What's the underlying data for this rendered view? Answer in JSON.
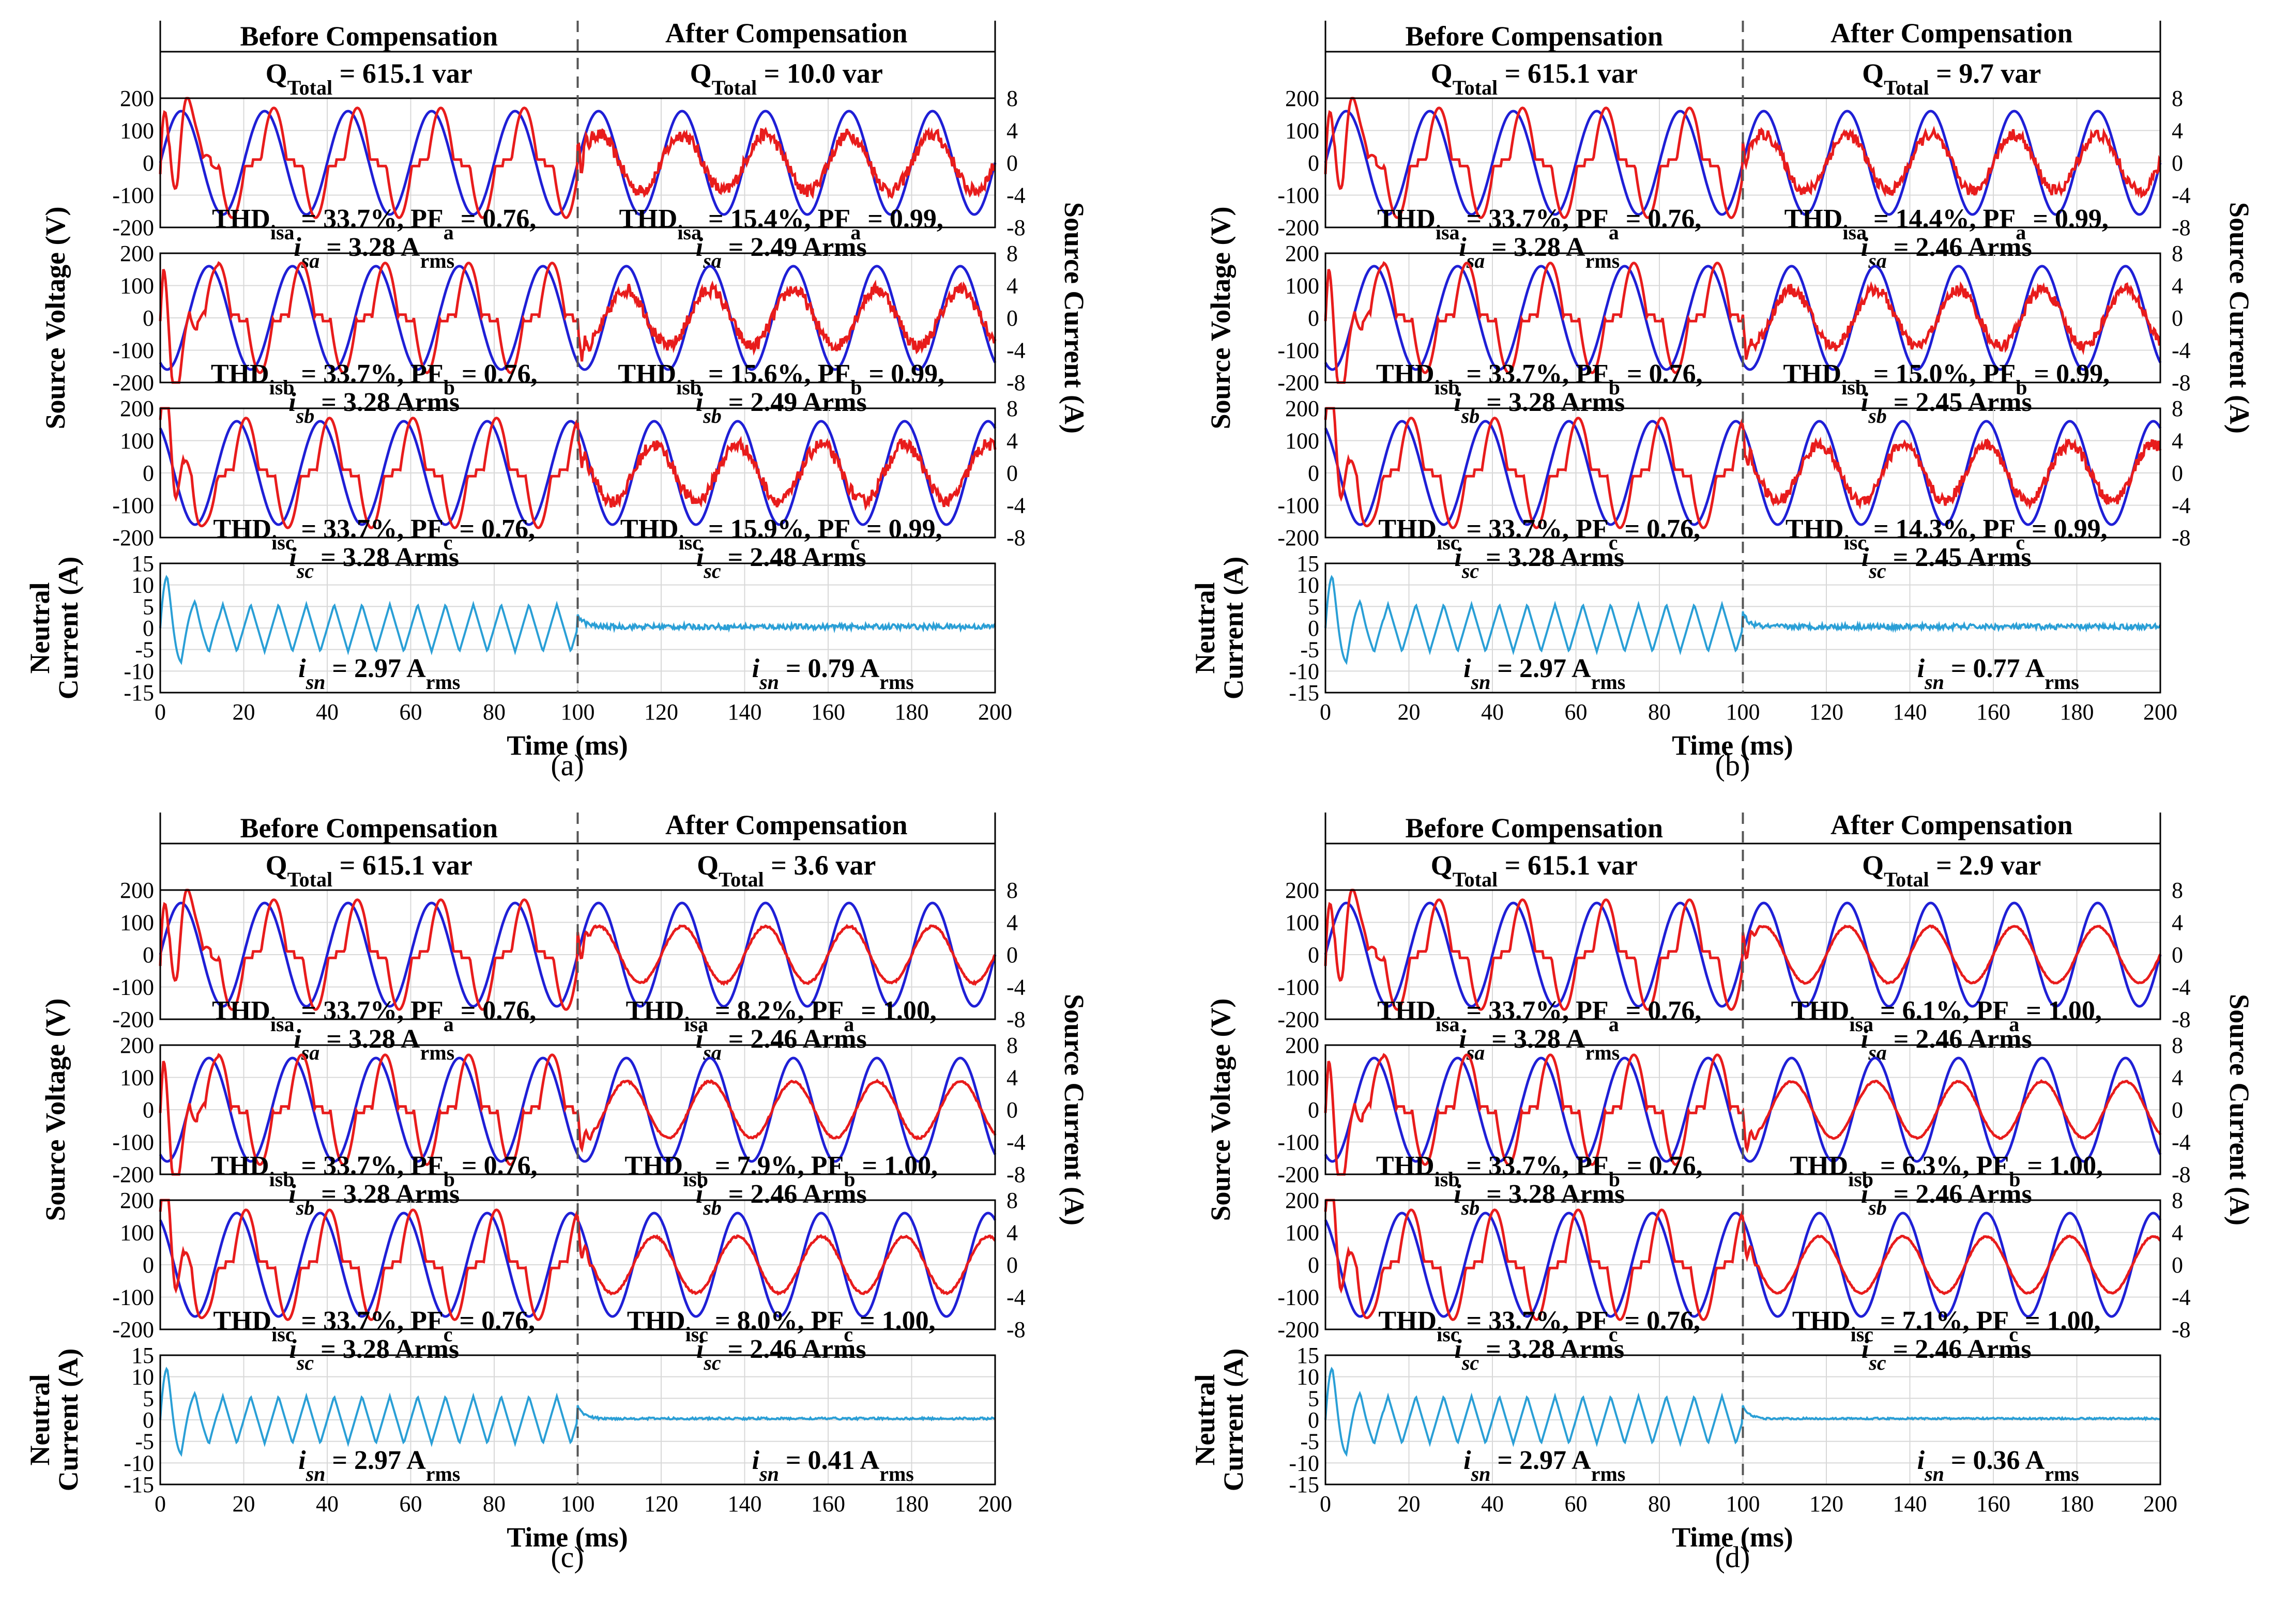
{
  "chart_data": [
    {
      "type": "line",
      "label": "(a)",
      "header": {
        "before": "Before Compensation",
        "after": "After Compensation",
        "q_before": "615.1 var",
        "q_after": "10.0 var"
      },
      "phases": [
        {
          "phase": "a",
          "thd_before": "33.7%",
          "pf_before": "0.76",
          "irms_before": "3.28",
          "thd_after": "15.4%",
          "pf_after": "0.99",
          "irms_after": "2.49",
          "unit_after": "Arms",
          "amp_after": 3.5,
          "ripple_after": 0.8
        },
        {
          "phase": "b",
          "thd_before": "33.7%",
          "pf_before": "0.76",
          "irms_before": "3.28",
          "thd_after": "15.6%",
          "pf_after": "0.99",
          "irms_after": "2.49",
          "unit_after": "Arms",
          "amp_after": 3.5,
          "ripple_after": 0.8
        },
        {
          "phase": "c",
          "thd_before": "33.7%",
          "pf_before": "0.76",
          "irms_before": "3.28",
          "thd_after": "15.9%",
          "pf_after": "0.99",
          "irms_after": "2.48",
          "unit_after": "Arms",
          "amp_after": 3.5,
          "ripple_after": 0.8
        }
      ],
      "neutral": {
        "irms_before": "2.97",
        "irms_after": "0.79",
        "ripple_after": 0.6
      }
    },
    {
      "type": "line",
      "label": "(b)",
      "header": {
        "before": "Before Compensation",
        "after": "After Compensation",
        "q_before": "615.1 var",
        "q_after": "9.7 var"
      },
      "phases": [
        {
          "phase": "a",
          "thd_before": "33.7%",
          "pf_before": "0.76",
          "irms_before": "3.28",
          "thd_after": "14.4%",
          "pf_after": "0.99",
          "irms_after": "2.46",
          "unit_after": "Arms",
          "amp_after": 3.5,
          "ripple_after": 0.7
        },
        {
          "phase": "b",
          "thd_before": "33.7%",
          "pf_before": "0.76",
          "irms_before": "3.28",
          "thd_after": "15.0%",
          "pf_after": "0.99",
          "irms_after": "2.45",
          "unit_after": "Arms",
          "amp_after": 3.5,
          "ripple_after": 0.7
        },
        {
          "phase": "c",
          "thd_before": "33.7%",
          "pf_before": "0.76",
          "irms_before": "3.28",
          "thd_after": "14.3%",
          "pf_after": "0.99",
          "irms_after": "2.45",
          "unit_after": "Arms",
          "amp_after": 3.5,
          "ripple_after": 0.7
        }
      ],
      "neutral": {
        "irms_before": "2.97",
        "irms_after": "0.77",
        "ripple_after": 0.6
      }
    },
    {
      "type": "line",
      "label": "(c)",
      "header": {
        "before": "Before Compensation",
        "after": "After Compensation",
        "q_before": "615.1 var",
        "q_after": "3.6 var"
      },
      "phases": [
        {
          "phase": "a",
          "thd_before": "33.7%",
          "pf_before": "0.76",
          "irms_before": "3.28",
          "thd_after": "8.2%",
          "pf_after": "1.00",
          "irms_after": "2.46",
          "unit_after": "Arms",
          "amp_after": 3.5,
          "ripple_after": 0.12
        },
        {
          "phase": "b",
          "thd_before": "33.7%",
          "pf_before": "0.76",
          "irms_before": "3.28",
          "thd_after": "7.9%",
          "pf_after": "1.00",
          "irms_after": "2.46",
          "unit_after": "Arms",
          "amp_after": 3.5,
          "ripple_after": 0.12
        },
        {
          "phase": "c",
          "thd_before": "33.7%",
          "pf_before": "0.76",
          "irms_before": "3.28",
          "thd_after": "8.0%",
          "pf_after": "1.00",
          "irms_after": "2.46",
          "unit_after": "Arms",
          "amp_after": 3.5,
          "ripple_after": 0.12
        }
      ],
      "neutral": {
        "irms_before": "2.97",
        "irms_after": "0.41",
        "ripple_after": 0.25
      }
    },
    {
      "type": "line",
      "label": "(d)",
      "header": {
        "before": "Before Compensation",
        "after": "After Compensation",
        "q_before": "615.1 var",
        "q_after": "2.9 var"
      },
      "phases": [
        {
          "phase": "a",
          "thd_before": "33.7%",
          "pf_before": "0.76",
          "irms_before": "3.28",
          "thd_after": "6.1%",
          "pf_after": "1.00",
          "irms_after": "2.46",
          "unit_after": "Arms",
          "amp_after": 3.5,
          "ripple_after": 0.08
        },
        {
          "phase": "b",
          "thd_before": "33.7%",
          "pf_before": "0.76",
          "irms_before": "3.28",
          "thd_after": "6.3%",
          "pf_after": "1.00",
          "irms_after": "2.46",
          "unit_after": "Arms",
          "amp_after": 3.5,
          "ripple_after": 0.08
        },
        {
          "phase": "c",
          "thd_before": "33.7%",
          "pf_before": "0.76",
          "irms_before": "3.28",
          "thd_after": "7.1%",
          "pf_after": "1.00",
          "irms_after": "2.46",
          "unit_after": "Arms",
          "amp_after": 3.5,
          "ripple_after": 0.08
        }
      ],
      "neutral": {
        "irms_before": "2.97",
        "irms_after": "0.36",
        "ripple_after": 0.2
      }
    }
  ],
  "common": {
    "x_label": "Time (ms)",
    "x_range": [
      0,
      200
    ],
    "x_ticks": [
      0,
      20,
      40,
      60,
      80,
      100,
      120,
      140,
      160,
      180,
      200
    ],
    "left_y_label": "Source Voltage (V)",
    "right_y_label": "Source Current (A)",
    "neutral_y_label_line1": "Neutral",
    "neutral_y_label_line2": "Current (A)",
    "voltage_range": [
      -200,
      200
    ],
    "voltage_ticks": [
      200,
      100,
      0,
      -100,
      -200
    ],
    "current_range": [
      -8,
      8
    ],
    "current_ticks": [
      8,
      4,
      0,
      -4,
      -8
    ],
    "neutral_range": [
      -15,
      15
    ],
    "neutral_ticks": [
      15,
      10,
      5,
      0,
      -5,
      -10,
      -15
    ],
    "compensation_start_ms": 100,
    "voltage_peak_v": 160,
    "frequency_hz": 50,
    "before_current_peak_a": 6.8,
    "before_current_phase_lag_deg": 40,
    "neutral_peak_before_a": 5.5,
    "series": [
      "Source voltage",
      "Source current",
      "Neutral current"
    ],
    "colors": {
      "voltage": "#1f1fd6",
      "current": "#e81c1c",
      "neutral": "#2a9fd6"
    }
  }
}
